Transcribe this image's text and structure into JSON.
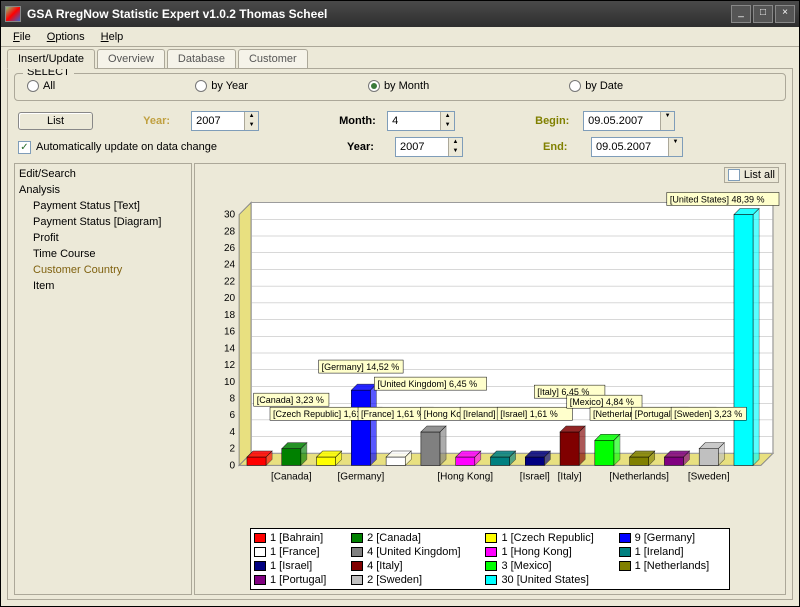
{
  "window": {
    "title": "GSA RregNow Statistic Expert v1.0.2  Thomas Scheel"
  },
  "menu": {
    "file": "File",
    "options": "Options",
    "help": "Help"
  },
  "tabs": {
    "items": [
      "Insert/Update",
      "Overview",
      "Database",
      "Customer"
    ],
    "active": 0
  },
  "select_group": {
    "title": "SELECT",
    "options": {
      "all": "All",
      "by_year": "by Year",
      "by_month": "by Month",
      "by_date": "by Date"
    },
    "selected": "by_month"
  },
  "controls": {
    "list_btn": "List",
    "year_label": "Year:",
    "year_value": "2007",
    "month_label": "Month:",
    "month_value": "4",
    "year2_label": "Year:",
    "year2_value": "2007",
    "begin_label": "Begin:",
    "begin_value": "09.05.2007",
    "end_label": "End:",
    "end_value": "09.05.2007",
    "auto_update": "Automatically update on data change",
    "auto_update_checked": true
  },
  "sidebar": {
    "edit_search": "Edit/Search",
    "analysis": "Analysis",
    "items": {
      "payment_text": "Payment Status [Text]",
      "payment_diag": "Payment Status [Diagram]",
      "profit": "Profit",
      "time_course": "Time Course",
      "customer_country": "Customer Country",
      "item": "Item"
    },
    "selected": "customer_country"
  },
  "list_all": "List all",
  "chart": {
    "type": "bar",
    "background_color": "#ece9d8",
    "plot_bg": "#ffffff",
    "wall_color": "#e8e080",
    "grid_color": "#b0b0b0",
    "ylim": [
      0,
      30
    ],
    "ytick_step": 2,
    "axis_fontsize": 10,
    "bar_width": 0.55,
    "x_labels": [
      "[Canada]",
      "[Germany]",
      "[Hong Kong]",
      "[Israel]",
      "[Italy]",
      "[Netherlands]",
      "[Sweden]"
    ],
    "bars": [
      {
        "name": "Bahrain",
        "value": 1,
        "color": "#ff0000"
      },
      {
        "name": "Canada",
        "value": 2,
        "color": "#008000"
      },
      {
        "name": "Czech Republic",
        "value": 1,
        "color": "#ffff00"
      },
      {
        "name": "Germany",
        "value": 9,
        "color": "#0000ff"
      },
      {
        "name": "France",
        "value": 1,
        "color": "#ffffff"
      },
      {
        "name": "United Kingdom",
        "value": 4,
        "color": "#808080"
      },
      {
        "name": "Hong Kong",
        "value": 1,
        "color": "#ff00ff"
      },
      {
        "name": "Ireland",
        "value": 1,
        "color": "#008080"
      },
      {
        "name": "Israel",
        "value": 1,
        "color": "#000080"
      },
      {
        "name": "Italy",
        "value": 4,
        "color": "#800000"
      },
      {
        "name": "Mexico",
        "value": 3,
        "color": "#00ff00"
      },
      {
        "name": "Netherlands",
        "value": 1,
        "color": "#808000"
      },
      {
        "name": "Portugal",
        "value": 1,
        "color": "#800080"
      },
      {
        "name": "Sweden",
        "value": 2,
        "color": "#c0c0c0"
      },
      {
        "name": "United States",
        "value": 30,
        "color": "#00ffff"
      }
    ],
    "callouts": [
      {
        "text": "[Canada] 3,23 %",
        "bar": 1
      },
      {
        "text": "[Czech Republic] 1,61 %",
        "bar": 2
      },
      {
        "text": "[Germany] 14,52 %",
        "bar": 3
      },
      {
        "text": "[France] 1,61 %",
        "bar": 4
      },
      {
        "text": "[United Kingdom] 6,45 %",
        "bar": 5
      },
      {
        "text": "[Hong Kong] 1,61 %",
        "bar": 6
      },
      {
        "text": "[Ireland] 1,61 %",
        "bar": 7
      },
      {
        "text": "[Israel] 1,61 %",
        "bar": 8
      },
      {
        "text": "[Italy] 6,45 %",
        "bar": 9
      },
      {
        "text": "[Mexico] 4,84 %",
        "bar": 10
      },
      {
        "text": "[Netherlands] 1,61 %",
        "bar": 11
      },
      {
        "text": "[Portugal] 1,61 %",
        "bar": 12
      },
      {
        "text": "[Sweden] 3,23 %",
        "bar": 13
      },
      {
        "text": "[United States] 48,39 %",
        "bar": 14
      }
    ]
  },
  "legend": {
    "items": [
      {
        "count": 1,
        "name": "[Bahrain]",
        "color": "#ff0000"
      },
      {
        "count": 2,
        "name": "[Canada]",
        "color": "#008000"
      },
      {
        "count": 1,
        "name": "[Czech Republic]",
        "color": "#ffff00"
      },
      {
        "count": 9,
        "name": "[Germany]",
        "color": "#0000ff"
      },
      {
        "count": 1,
        "name": "[France]",
        "color": "#ffffff"
      },
      {
        "count": 4,
        "name": "[United Kingdom]",
        "color": "#808080"
      },
      {
        "count": 1,
        "name": "[Hong Kong]",
        "color": "#ff00ff"
      },
      {
        "count": 1,
        "name": "[Ireland]",
        "color": "#008080"
      },
      {
        "count": 1,
        "name": "[Israel]",
        "color": "#000080"
      },
      {
        "count": 4,
        "name": "[Italy]",
        "color": "#800000"
      },
      {
        "count": 3,
        "name": "[Mexico]",
        "color": "#00ff00"
      },
      {
        "count": 1,
        "name": "[Netherlands]",
        "color": "#808000"
      },
      {
        "count": 1,
        "name": "[Portugal]",
        "color": "#800080"
      },
      {
        "count": 2,
        "name": "[Sweden]",
        "color": "#c0c0c0"
      },
      {
        "count": 30,
        "name": "[United States]",
        "color": "#00ffff"
      }
    ]
  }
}
